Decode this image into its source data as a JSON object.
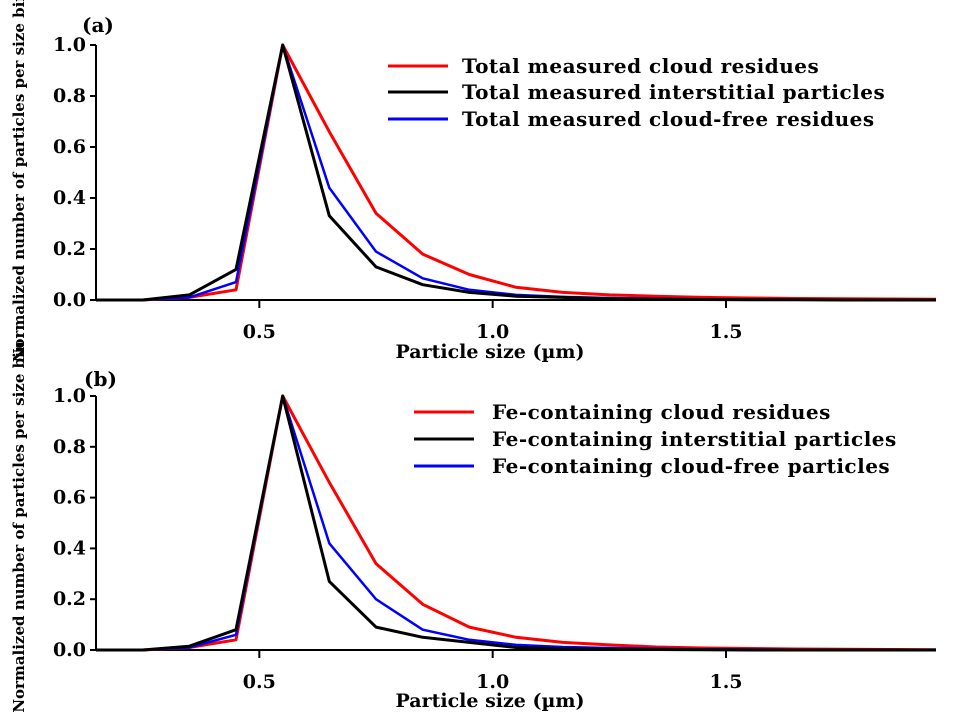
{
  "chart_data": [
    {
      "type": "line",
      "panel_label": "(a)",
      "xlabel": "Particle size (µm)",
      "ylabel": "Normalized number of particles per size bin",
      "xlim": [
        0.15,
        1.95
      ],
      "ylim": [
        0,
        1.0
      ],
      "xticks": [
        0.5,
        1.0,
        1.5
      ],
      "xtick_labels": [
        "0.5",
        "1.0",
        "1.5"
      ],
      "yticks": [
        0,
        0.2,
        0.4,
        0.6,
        0.8,
        1.0
      ],
      "ytick_labels": [
        "0.0",
        "0.2",
        "0.4",
        "0.6",
        "0.8",
        "1.0"
      ],
      "grid": false,
      "legend_position": "top-right",
      "x": [
        0.15,
        0.25,
        0.35,
        0.45,
        0.55,
        0.65,
        0.75,
        0.85,
        0.95,
        1.05,
        1.15,
        1.25,
        1.35,
        1.45,
        1.55,
        1.65,
        1.75,
        1.85,
        1.95
      ],
      "series": [
        {
          "name": "Total measured cloud residues",
          "color": "#ff0000",
          "values": [
            0.0,
            0.0,
            0.01,
            0.04,
            1.0,
            0.66,
            0.34,
            0.18,
            0.1,
            0.05,
            0.03,
            0.02,
            0.015,
            0.01,
            0.008,
            0.006,
            0.005,
            0.004,
            0.003
          ]
        },
        {
          "name": "Total measured interstitial particles",
          "color": "#000000",
          "values": [
            0.0,
            0.0,
            0.02,
            0.12,
            1.0,
            0.33,
            0.13,
            0.06,
            0.03,
            0.015,
            0.01,
            0.005,
            0.003,
            0.002,
            0.001,
            0.001,
            0.0,
            0.0,
            0.0
          ]
        },
        {
          "name": "Total measured cloud-free residues",
          "color": "#0000ff",
          "values": [
            0.0,
            0.0,
            0.01,
            0.07,
            1.0,
            0.44,
            0.19,
            0.085,
            0.04,
            0.02,
            0.012,
            0.008,
            0.005,
            0.003,
            0.002,
            0.001,
            0.001,
            0.0,
            0.0
          ]
        }
      ]
    },
    {
      "type": "line",
      "panel_label": "(b)",
      "xlabel": "Particle size (µm)",
      "ylabel": "Normalized number of particles per size bin",
      "xlim": [
        0.15,
        1.95
      ],
      "ylim": [
        0,
        1.0
      ],
      "xticks": [
        0.5,
        1.0,
        1.5
      ],
      "xtick_labels": [
        "0.5",
        "1.0",
        "1.5"
      ],
      "yticks": [
        0,
        0.2,
        0.4,
        0.6,
        0.8,
        1.0
      ],
      "ytick_labels": [
        "0.0",
        "0.2",
        "0.4",
        "0.6",
        "0.8",
        "1.0"
      ],
      "grid": false,
      "legend_position": "top-right",
      "x": [
        0.15,
        0.25,
        0.35,
        0.45,
        0.55,
        0.65,
        0.75,
        0.85,
        0.95,
        1.05,
        1.15,
        1.25,
        1.35,
        1.45,
        1.55,
        1.65,
        1.75,
        1.85,
        1.95
      ],
      "series": [
        {
          "name": "Fe-containing cloud residues",
          "color": "#ff0000",
          "values": [
            0.0,
            0.0,
            0.01,
            0.04,
            1.0,
            0.66,
            0.34,
            0.18,
            0.09,
            0.05,
            0.03,
            0.02,
            0.012,
            0.008,
            0.006,
            0.004,
            0.003,
            0.002,
            0.001
          ]
        },
        {
          "name": "Fe-containing interstitial particles",
          "color": "#000000",
          "values": [
            0.0,
            0.0,
            0.015,
            0.08,
            1.0,
            0.27,
            0.09,
            0.05,
            0.03,
            0.01,
            0.005,
            0.003,
            0.002,
            0.001,
            0.0,
            0.0,
            0.0,
            0.0,
            0.0
          ]
        },
        {
          "name": "Fe-containing cloud-free particles",
          "color": "#0000ff",
          "values": [
            0.0,
            0.0,
            0.01,
            0.06,
            1.0,
            0.42,
            0.2,
            0.08,
            0.04,
            0.02,
            0.012,
            0.008,
            0.005,
            0.003,
            0.002,
            0.001,
            0.0,
            0.0,
            0.0
          ]
        }
      ]
    }
  ]
}
